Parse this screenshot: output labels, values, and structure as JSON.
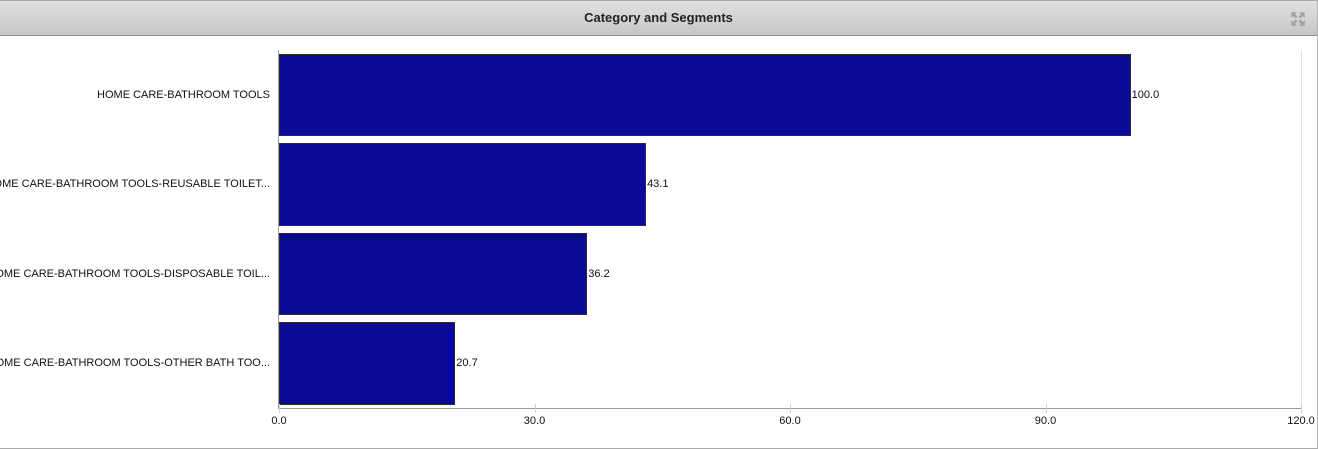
{
  "header": {
    "title": "Category and Segments"
  },
  "chart_data": {
    "type": "bar",
    "orientation": "horizontal",
    "title": "Category and Segments",
    "categories": [
      "HOME CARE-BATHROOM TOOLS",
      "HOME CARE-BATHROOM TOOLS-REUSABLE TOILET...",
      "HOME CARE-BATHROOM TOOLS-DISPOSABLE TOIL...",
      "HOME CARE-BATHROOM TOOLS-OTHER BATH TOO..."
    ],
    "values": [
      100.0,
      43.1,
      36.2,
      20.7
    ],
    "value_labels": [
      "100.0",
      "43.1",
      "36.2",
      "20.7"
    ],
    "x_ticks": [
      "0.0",
      "30.0",
      "60.0",
      "90.0",
      "120.0"
    ],
    "xlim": [
      0,
      120
    ],
    "xlabel": "",
    "ylabel": "",
    "grid": false,
    "legend": "none",
    "bar_color": "#0a0a96",
    "bar_border_color": "#2b2b2b",
    "axis_color": "#9c9c9c",
    "tick_color": "#c4d6e7"
  },
  "icons": {
    "maximize": "maximize-icon"
  }
}
